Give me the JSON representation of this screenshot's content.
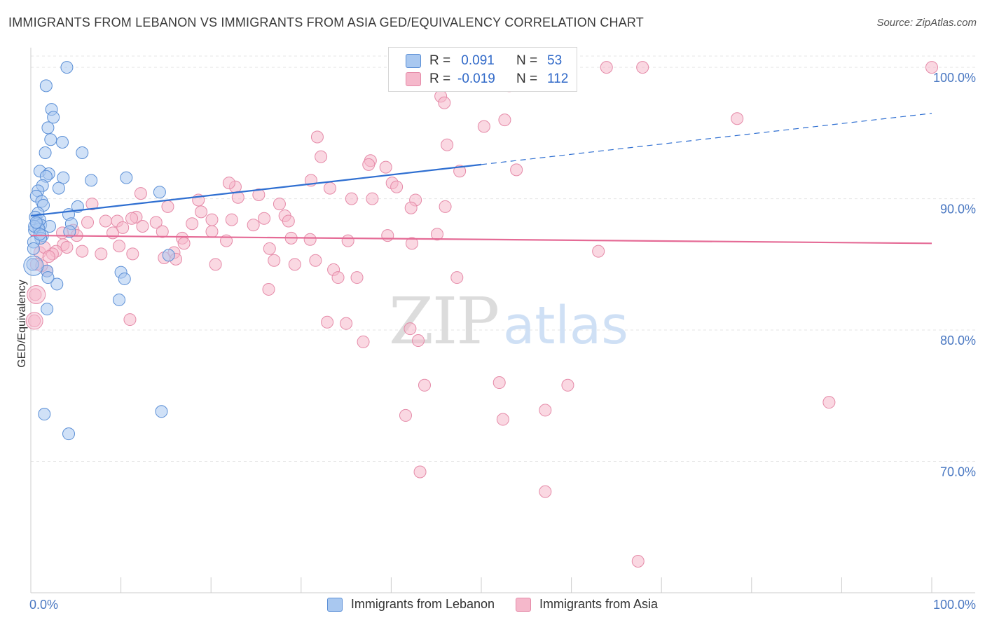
{
  "title": "IMMIGRANTS FROM LEBANON VS IMMIGRANTS FROM ASIA GED/EQUIVALENCY CORRELATION CHART",
  "source": "Source: ZipAtlas.com",
  "watermark": {
    "zip": "ZIP",
    "atlas": "atlas"
  },
  "colors": {
    "blue_fill": "#a9c8f0",
    "blue_stroke": "#5b8fd6",
    "blue_line": "#2f6fd1",
    "pink_fill": "#f5b8cb",
    "pink_stroke": "#e58aa8",
    "pink_line": "#e56b96",
    "tick_text": "#4a78c2",
    "grid": "#e6e6e6"
  },
  "legend": {
    "rows": [
      {
        "r_label": "R =",
        "r_value": " 0.091",
        "n_label": "N =",
        "n_value": "53"
      },
      {
        "r_label": "R =",
        "r_value": "-0.019",
        "n_label": "N =",
        "n_value": "112"
      }
    ]
  },
  "chart_data": {
    "type": "scatter",
    "xlabel": "",
    "ylabel": "GED/Equivalency",
    "xlim": [
      0,
      100
    ],
    "ylim": [
      60,
      101.5
    ],
    "x_tick_labels": [
      "0.0%",
      "100.0%"
    ],
    "y_ticks": [
      70,
      80,
      90,
      100
    ],
    "y_tick_labels": [
      "70.0%",
      "80.0%",
      "90.0%",
      "100.0%"
    ],
    "grid": true,
    "legend_position": "bottom",
    "series": [
      {
        "name": "Immigrants from Lebanon",
        "color": "blue",
        "trend": {
          "x0": 0,
          "y0": 88.7,
          "x1": 50,
          "y1": 92.6,
          "dashed_to_x": 100,
          "dashed_to_y": 96.5
        },
        "points": [
          [
            4.0,
            100.0
          ],
          [
            1.7,
            98.6
          ],
          [
            2.3,
            96.8
          ],
          [
            2.5,
            96.2
          ],
          [
            1.9,
            95.4
          ],
          [
            2.2,
            94.5
          ],
          [
            3.5,
            94.3
          ],
          [
            1.6,
            93.5
          ],
          [
            5.7,
            93.5
          ],
          [
            1.0,
            92.1
          ],
          [
            2.0,
            91.9
          ],
          [
            1.7,
            91.7
          ],
          [
            3.6,
            91.6
          ],
          [
            6.7,
            91.4
          ],
          [
            10.6,
            91.6
          ],
          [
            1.3,
            91.0
          ],
          [
            0.8,
            90.6
          ],
          [
            3.1,
            90.8
          ],
          [
            0.6,
            90.2
          ],
          [
            1.2,
            89.8
          ],
          [
            1.4,
            89.5
          ],
          [
            5.2,
            89.4
          ],
          [
            14.3,
            90.5
          ],
          [
            0.8,
            88.9
          ],
          [
            0.5,
            88.6
          ],
          [
            1.0,
            88.4
          ],
          [
            4.2,
            88.8
          ],
          [
            0.7,
            88.1
          ],
          [
            1.1,
            88.0
          ],
          [
            2.1,
            87.9
          ],
          [
            0.4,
            87.6
          ],
          [
            0.9,
            87.7
          ],
          [
            4.5,
            88.1
          ],
          [
            1.3,
            87.2
          ],
          [
            1.1,
            87.0
          ],
          [
            4.3,
            87.5
          ],
          [
            0.3,
            86.7
          ],
          [
            15.3,
            85.7
          ],
          [
            0.2,
            85.0
          ],
          [
            1.8,
            84.5
          ],
          [
            2.9,
            83.5
          ],
          [
            1.9,
            84.0
          ],
          [
            10.0,
            84.4
          ],
          [
            10.4,
            83.9
          ],
          [
            9.8,
            82.3
          ],
          [
            1.8,
            81.6
          ],
          [
            1.5,
            73.6
          ],
          [
            14.5,
            73.8
          ],
          [
            4.2,
            72.1
          ],
          [
            0.4,
            87.9
          ],
          [
            0.6,
            88.2
          ],
          [
            1.0,
            87.3
          ],
          [
            0.3,
            86.2
          ]
        ]
      },
      {
        "name": "Immigrants from Asia",
        "color": "pink",
        "trend": {
          "x0": 0,
          "y0": 87.2,
          "x1": 100,
          "y1": 86.6
        },
        "points": [
          [
            63.9,
            100.0
          ],
          [
            67.9,
            100.0
          ],
          [
            100.0,
            100.0
          ],
          [
            53.1,
            98.6
          ],
          [
            45.5,
            97.8
          ],
          [
            45.9,
            97.3
          ],
          [
            52.6,
            96.0
          ],
          [
            50.3,
            95.5
          ],
          [
            78.4,
            96.1
          ],
          [
            31.8,
            94.7
          ],
          [
            46.2,
            94.1
          ],
          [
            32.2,
            93.2
          ],
          [
            37.7,
            92.9
          ],
          [
            37.5,
            92.6
          ],
          [
            53.9,
            92.2
          ],
          [
            47.6,
            92.1
          ],
          [
            39.4,
            92.4
          ],
          [
            22.7,
            90.9
          ],
          [
            31.1,
            91.4
          ],
          [
            22.0,
            91.2
          ],
          [
            40.1,
            91.2
          ],
          [
            33.2,
            90.8
          ],
          [
            40.6,
            90.9
          ],
          [
            18.6,
            89.9
          ],
          [
            18.9,
            89.0
          ],
          [
            12.2,
            90.4
          ],
          [
            23.0,
            90.1
          ],
          [
            25.3,
            90.3
          ],
          [
            35.6,
            90.0
          ],
          [
            37.9,
            90.0
          ],
          [
            42.7,
            89.9
          ],
          [
            46.0,
            89.4
          ],
          [
            42.2,
            89.3
          ],
          [
            27.6,
            89.6
          ],
          [
            6.8,
            89.6
          ],
          [
            11.7,
            88.6
          ],
          [
            15.2,
            89.4
          ],
          [
            20.1,
            88.4
          ],
          [
            22.3,
            88.4
          ],
          [
            25.9,
            88.5
          ],
          [
            28.2,
            88.7
          ],
          [
            9.6,
            88.3
          ],
          [
            11.2,
            88.5
          ],
          [
            13.9,
            88.2
          ],
          [
            17.9,
            88.1
          ],
          [
            28.6,
            88.3
          ],
          [
            24.7,
            88.0
          ],
          [
            8.3,
            88.3
          ],
          [
            6.3,
            88.2
          ],
          [
            9.1,
            87.4
          ],
          [
            10.2,
            87.8
          ],
          [
            12.4,
            87.9
          ],
          [
            14.6,
            87.5
          ],
          [
            4.7,
            87.6
          ],
          [
            3.5,
            87.4
          ],
          [
            5.1,
            87.2
          ],
          [
            16.8,
            87.0
          ],
          [
            20.1,
            87.5
          ],
          [
            28.9,
            87.0
          ],
          [
            31.0,
            86.9
          ],
          [
            35.2,
            86.8
          ],
          [
            39.6,
            87.2
          ],
          [
            45.1,
            87.3
          ],
          [
            21.7,
            86.8
          ],
          [
            17.0,
            86.6
          ],
          [
            9.8,
            86.4
          ],
          [
            3.6,
            86.5
          ],
          [
            4.0,
            86.3
          ],
          [
            2.8,
            86.0
          ],
          [
            2.4,
            85.8
          ],
          [
            5.7,
            86.0
          ],
          [
            7.8,
            85.8
          ],
          [
            15.9,
            85.9
          ],
          [
            11.3,
            85.8
          ],
          [
            14.8,
            85.5
          ],
          [
            26.5,
            86.2
          ],
          [
            31.6,
            85.3
          ],
          [
            27.0,
            85.3
          ],
          [
            16.1,
            85.4
          ],
          [
            20.5,
            85.0
          ],
          [
            29.3,
            85.0
          ],
          [
            42.3,
            86.6
          ],
          [
            63.0,
            86.0
          ],
          [
            33.6,
            84.6
          ],
          [
            34.1,
            84.0
          ],
          [
            36.2,
            84.0
          ],
          [
            47.3,
            84.0
          ],
          [
            1.8,
            84.5
          ],
          [
            0.5,
            82.7
          ],
          [
            0.4,
            80.7
          ],
          [
            11.0,
            80.8
          ],
          [
            26.4,
            83.1
          ],
          [
            32.9,
            80.6
          ],
          [
            35.0,
            80.5
          ],
          [
            42.1,
            80.1
          ],
          [
            36.9,
            79.1
          ],
          [
            43.0,
            79.2
          ],
          [
            43.7,
            75.8
          ],
          [
            52.0,
            76.0
          ],
          [
            59.6,
            75.8
          ],
          [
            57.1,
            73.9
          ],
          [
            41.6,
            73.5
          ],
          [
            52.4,
            73.2
          ],
          [
            88.6,
            74.5
          ],
          [
            43.2,
            69.2
          ],
          [
            57.1,
            67.7
          ],
          [
            67.4,
            62.4
          ],
          [
            1.0,
            85.9
          ],
          [
            1.5,
            86.3
          ],
          [
            0.6,
            85.0
          ],
          [
            2.0,
            85.6
          ],
          [
            1.2,
            84.9
          ]
        ]
      }
    ]
  }
}
